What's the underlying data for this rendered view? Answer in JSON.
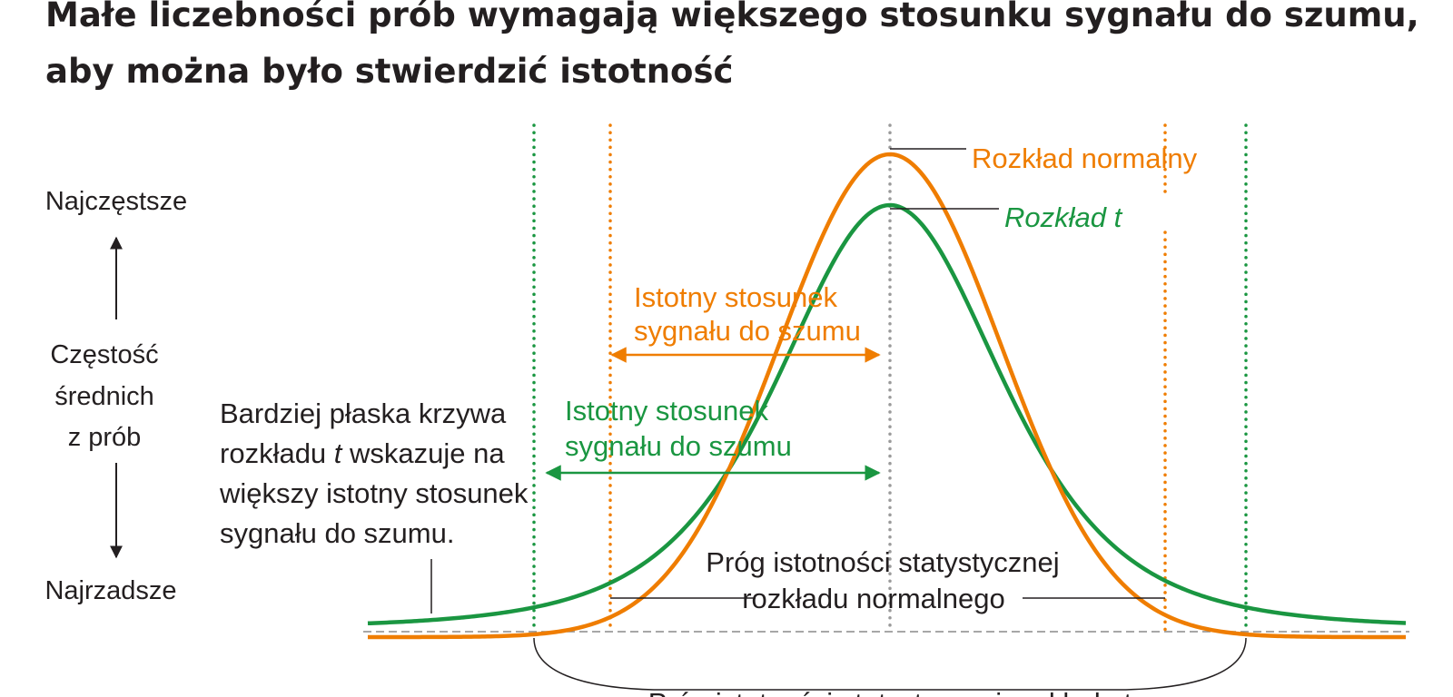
{
  "title": {
    "line1": "Małe liczebności prób wymagają większego stosunku sygnału do szumu,",
    "line2": "aby można było stwierdzić istotność"
  },
  "y_axis": {
    "top": "Najczęstsze",
    "middle_line1": "Częstość",
    "middle_line2": "średnich",
    "middle_line3": "z prób",
    "bottom": "Najrzadsze"
  },
  "curves": {
    "normal_label": "Rozkład normalny",
    "t_label": "Rozkład t",
    "normal_color": "#ef7d00",
    "t_color": "#1a9641"
  },
  "annotations": {
    "orange_ratio_line1": "Istotny stosunek",
    "orange_ratio_line2": "sygnału do szumu",
    "green_ratio_line1": "Istotny stosunek",
    "green_ratio_line2": "sygnału do szumu",
    "flat_line1": "Bardziej płaska krzywa",
    "flat_line2a": "rozkładu ",
    "flat_line2b": "t",
    "flat_line2c": " wskazuje na",
    "flat_line3": "większy istotny stosunek",
    "flat_line4": "sygnału do szumu.",
    "normal_threshold_line1": "Próg istotności statystycznej",
    "normal_threshold_line2": "rozkładu normalnego",
    "t_threshold": "Próg istotności statystycznej rozkładu t"
  }
}
